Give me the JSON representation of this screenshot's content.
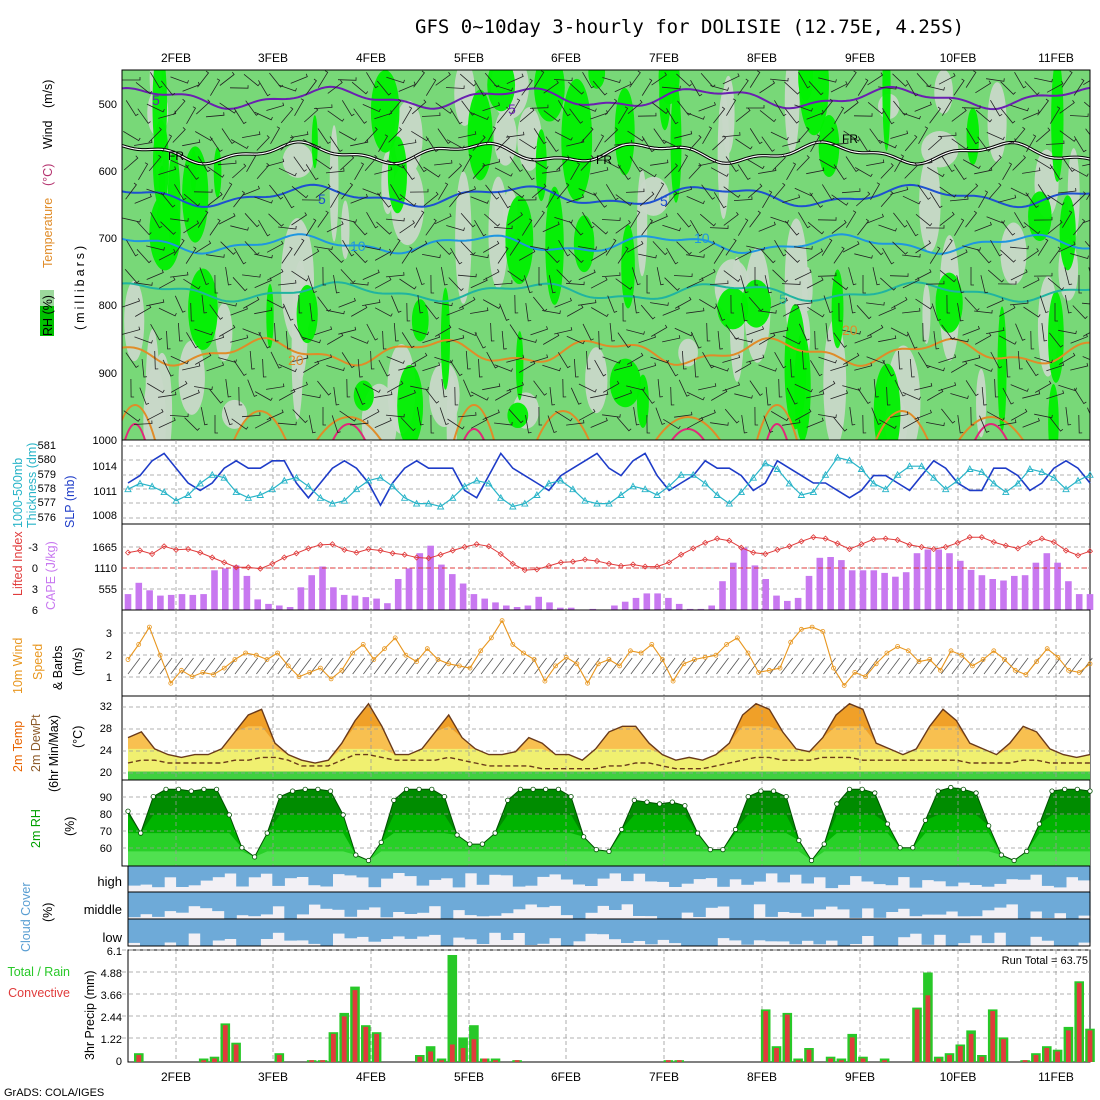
{
  "title": "GFS 0~10day 3-hourly for DOLISIE (12.75E, 4.25S)",
  "footer": "GrADS: COLA/IGES",
  "dates": [
    "2FEB",
    "3FEB",
    "4FEB",
    "5FEB",
    "6FEB",
    "7FEB",
    "8FEB",
    "9FEB",
    "10FEB",
    "11FEB"
  ],
  "colors": {
    "rh_light": "#c8d8c8",
    "rh_mid": "#78d878",
    "rh_bright": "#00f000",
    "rh_dark": "#00a000",
    "slp_line": "#1e3cc8",
    "thickness_line": "#28b4c8",
    "lifted_line": "#e03c3c",
    "cape_bar": "#c878f0",
    "wind_line": "#e8961e",
    "temp_fill": "#f0a028",
    "temp_hot": "#e86400",
    "dew_fill": "#f0f070",
    "rh_green": "#00a000",
    "cloud_blue": "#6eaad8",
    "precip_total": "#28c828",
    "precip_conv": "#e03c3c"
  },
  "panels": {
    "profile": {
      "labels": [
        "RH (%)",
        "Temperature",
        "(°C)",
        "Wind",
        "(m/s)",
        "(millibars)"
      ],
      "yticks": [
        "500",
        "600",
        "700",
        "800",
        "900",
        "1000"
      ],
      "contour_labels": [
        "5",
        "5",
        "FR",
        "FR",
        "FR",
        "5",
        "5",
        "10",
        "10",
        "5",
        "20",
        "20"
      ]
    },
    "thickness": {
      "labels": [
        "1000-500mb",
        "Thickness (dm)",
        "SLP (mb)"
      ],
      "left_ticks": [
        "581",
        "580",
        "579",
        "578",
        "577",
        "576"
      ],
      "right_ticks": [
        "1014",
        "1011",
        "1008"
      ]
    },
    "cape": {
      "labels": [
        "Lifted Index",
        "CAPE (J/kg)"
      ],
      "left_ticks": [
        "-3",
        "0",
        "3",
        "6"
      ],
      "right_ticks": [
        "1665",
        "1110",
        "555"
      ]
    },
    "wind": {
      "labels": [
        "10m Wind",
        "Speed",
        "& Barbs",
        "(m/s)"
      ],
      "ticks": [
        "3",
        "2",
        "1"
      ]
    },
    "temp": {
      "labels": [
        "2m Temp",
        "2m DewPt",
        "(6hr Min/Max)",
        "(°C)"
      ],
      "ticks": [
        "32",
        "28",
        "24",
        "20"
      ]
    },
    "rh": {
      "labels": [
        "2m RH",
        "(%)"
      ],
      "ticks": [
        "90",
        "80",
        "70",
        "60"
      ]
    },
    "cloud": {
      "labels": [
        "Cloud Cover",
        "(%)"
      ],
      "layers": [
        "high",
        "middle",
        "low"
      ]
    },
    "precip": {
      "labels": [
        "Total / Rain",
        "Convective",
        "3hr Precip (mm)"
      ],
      "ticks": [
        "6.1",
        "4.88",
        "3.66",
        "2.44",
        "1.22",
        "0"
      ],
      "run_total": "Run Total = 63.75"
    }
  },
  "chart_data": [
    {
      "type": "line",
      "panel": "thickness-slp",
      "x_unit": "hours from 1FEB 12Z (3-hourly)",
      "series": [
        {
          "name": "SLP (mb)",
          "values": [
            1011,
            1012,
            1014,
            1015,
            1013,
            1011,
            1010,
            1011,
            1013,
            1014,
            1013,
            1013,
            1014,
            1014,
            1011,
            1009,
            1011,
            1013,
            1014,
            1013,
            1011,
            1008,
            1011,
            1013,
            1014,
            1013,
            1013,
            1013,
            1010,
            1009,
            1012,
            1015,
            1013,
            1012,
            1011,
            1010,
            1012,
            1013,
            1014,
            1015,
            1013,
            1012,
            1014,
            1015,
            1012,
            1010,
            1011,
            1012,
            1014,
            1013,
            1013,
            1012,
            1010,
            1011,
            1014,
            1013,
            1012,
            1011,
            1011,
            1010,
            1009,
            1010,
            1012,
            1012,
            1011,
            1010,
            1012,
            1014,
            1013,
            1011,
            1010,
            1010,
            1013,
            1013,
            1012,
            1010,
            1011,
            1013,
            1014,
            1013,
            1011
          ]
        },
        {
          "name": "Thickness (dm)",
          "values": [
            578.0,
            578.4,
            578.2,
            577.8,
            577.2,
            577.6,
            578.4,
            579.0,
            578.8,
            577.8,
            577.4,
            577.6,
            578.0,
            578.6,
            578.8,
            578.2,
            577.4,
            577.0,
            577.2,
            578.0,
            578.6,
            578.8,
            578.2,
            577.4,
            577.0,
            577.0,
            576.8,
            577.4,
            578.2,
            578.6,
            578.4,
            577.4,
            576.8,
            577.0,
            577.6,
            578.4,
            578.6,
            578.0,
            577.2,
            577.0,
            577.0,
            577.6,
            578.2,
            578.0,
            577.6,
            578.2,
            579.0,
            579.0,
            578.4,
            577.6,
            577.0,
            577.8,
            578.8,
            579.8,
            579.4,
            578.4,
            577.6,
            577.8,
            579.0,
            580.2,
            580.0,
            579.4,
            578.4,
            578.0,
            579.0,
            579.6,
            579.6,
            578.8,
            578.0,
            578.6,
            579.4,
            579.2,
            578.4,
            577.8,
            578.4,
            579.4,
            579.2,
            578.8,
            578.0,
            578.6,
            579.0
          ]
        }
      ]
    },
    {
      "type": "bar",
      "panel": "cape",
      "series": [
        {
          "name": "CAPE (J/kg)",
          "values": [
            420,
            720,
            520,
            380,
            400,
            420,
            400,
            420,
            1050,
            1100,
            1180,
            900,
            280,
            160,
            120,
            80,
            600,
            920,
            1150,
            600,
            400,
            380,
            340,
            300,
            180,
            820,
            1100,
            1500,
            1700,
            1200,
            950,
            700,
            420,
            300,
            200,
            120,
            80,
            120,
            350,
            200,
            60,
            60,
            0,
            30,
            0,
            120,
            220,
            320,
            440,
            440,
            320,
            160,
            30,
            30,
            120,
            760,
            1250,
            1650,
            1180,
            820,
            380,
            240,
            320,
            900,
            1380,
            1400,
            1320,
            1050,
            1050,
            1050,
            980,
            880,
            1000,
            1500,
            1600,
            1600,
            1500,
            1300,
            1060,
            920,
            820,
            780,
            900,
            920,
            1250,
            1500,
            1250,
            760,
            420,
            420
          ]
        },
        {
          "name": "Lifted Index",
          "values": [
            -2.2,
            -2.5,
            -2.0,
            -3.1,
            -2.6,
            -2.7,
            -2.2,
            -1.5,
            -0.8,
            -0.1,
            -0.1,
            0.1,
            -0.6,
            -1.5,
            -2.1,
            -2.8,
            -3.3,
            -3.4,
            -2.6,
            -2.2,
            -2.7,
            -2.5,
            -2.1,
            -1.9,
            -1.5,
            -1.4,
            -1.9,
            -2.5,
            -3.0,
            -3.4,
            -3.1,
            -2.0,
            -0.6,
            0.3,
            0.2,
            -0.3,
            -0.8,
            -0.9,
            -1.2,
            -1.0,
            -0.6,
            -0.3,
            -0.5,
            -0.2,
            -0.2,
            -0.8,
            -1.9,
            -2.8,
            -3.6,
            -4.2,
            -3.9,
            -2.9,
            -2.2,
            -2.0,
            -2.6,
            -3.1,
            -3.8,
            -4.4,
            -4.2,
            -3.5,
            -2.7,
            -3.4,
            -4.1,
            -4.2,
            -4.0,
            -3.3,
            -3.0,
            -2.7,
            -3.0,
            -3.6,
            -4.4,
            -4.4,
            -3.7,
            -3.2,
            -2.8,
            -3.6,
            -4.2,
            -3.7,
            -2.5,
            -1.8,
            -2.4
          ]
        }
      ]
    },
    {
      "type": "line",
      "panel": "wind",
      "series": [
        {
          "name": "Speed (m/s)",
          "values": [
            1.6,
            2.3,
            3.1,
            1.8,
            0.5,
            1.1,
            0.8,
            1.0,
            0.9,
            1.2,
            1.6,
            1.9,
            1.8,
            1.6,
            1.9,
            1.3,
            0.8,
            1.0,
            1.2,
            0.7,
            1.1,
            1.9,
            2.3,
            1.6,
            2.1,
            2.6,
            1.8,
            1.5,
            2.1,
            1.6,
            1.4,
            1.3,
            1.2,
            2.0,
            2.6,
            3.4,
            2.3,
            1.9,
            1.6,
            0.6,
            1.3,
            1.7,
            1.4,
            0.5,
            1.4,
            1.6,
            1.3,
            2.0,
            1.9,
            2.3,
            1.6,
            0.6,
            1.4,
            1.6,
            1.7,
            1.8,
            2.3,
            2.6,
            1.9,
            1.0,
            1.1,
            1.2,
            2.4,
            3.0,
            3.1,
            2.9,
            1.2,
            0.4,
            1.0,
            0.8,
            1.4,
            1.9,
            2.2,
            2.0,
            1.5,
            1.6,
            1.1,
            2.0,
            1.8,
            1.3,
            1.6,
            2.0,
            1.6,
            1.1,
            0.9,
            1.5,
            2.1,
            1.7,
            1.1,
            1.0,
            1.4
          ]
        }
      ]
    },
    {
      "type": "area",
      "panel": "temperature",
      "series": [
        {
          "name": "2m Temp (°C)",
          "values": [
            26,
            27,
            24,
            23,
            22.5,
            23,
            23,
            24,
            27,
            30,
            31,
            25,
            23,
            22,
            21.5,
            22,
            25,
            29,
            32,
            28,
            23,
            23,
            24,
            27,
            30,
            26,
            24,
            23,
            23,
            23.5,
            26,
            25,
            23,
            23,
            22,
            24,
            27,
            28,
            28,
            25,
            23,
            22,
            22.5,
            22,
            23,
            25,
            30,
            32,
            31,
            27,
            24,
            23.5,
            26,
            30,
            32,
            31,
            25,
            24,
            23,
            24,
            28,
            31,
            29,
            25,
            24,
            23,
            25,
            28,
            27,
            24,
            23,
            22.5,
            23
          ]
        },
        {
          "name": "2m DewPt (°C)",
          "values": [
            21.5,
            22,
            22,
            21.5,
            21.5,
            21.5,
            21.5,
            21.5,
            22,
            22,
            22.5,
            22.5,
            22,
            21,
            21,
            21,
            22,
            23,
            23,
            22.5,
            22,
            22,
            22,
            22,
            22.5,
            22,
            21.5,
            21,
            21,
            21,
            21,
            20.5,
            20.5,
            20.5,
            20.5,
            20.5,
            21,
            21,
            21.5,
            21.5,
            21,
            20.5,
            20.5,
            20.5,
            21,
            21.5,
            22,
            22.5,
            22.5,
            22,
            22,
            22,
            22.5,
            22.5,
            22.5,
            22,
            22,
            22,
            22,
            22,
            22,
            22,
            22,
            21.5,
            21.5,
            21.5,
            21.5,
            22,
            22,
            21.5,
            21.5,
            21.5,
            21.5
          ]
        }
      ]
    },
    {
      "type": "area",
      "panel": "rh",
      "series": [
        {
          "name": "2m RH (%)",
          "values": [
            82,
            70,
            90,
            94,
            94,
            93,
            94,
            94,
            80,
            62,
            57,
            70,
            90,
            93,
            94,
            94,
            93,
            80,
            58,
            55,
            65,
            88,
            94,
            94,
            94,
            90,
            69,
            64,
            64,
            70,
            88,
            94,
            94,
            94,
            94,
            90,
            68,
            61,
            60,
            72,
            88,
            87,
            86,
            87,
            85,
            70,
            61,
            61,
            72,
            90,
            93,
            93,
            90,
            66,
            55,
            64,
            86,
            94,
            94,
            92,
            75,
            62,
            62,
            77,
            93,
            95,
            94,
            92,
            74,
            58,
            55,
            60,
            75,
            93,
            94,
            94,
            93
          ]
        }
      ]
    },
    {
      "type": "bar",
      "panel": "precip",
      "ylim": [
        0,
        6.1
      ],
      "series": [
        {
          "name": "Total / Rain (mm)",
          "values": [
            0,
            0.5,
            0,
            0,
            0,
            0,
            0,
            0.2,
            0.3,
            2.2,
            1.1,
            0,
            0,
            0,
            0.5,
            0,
            0,
            0.1,
            0.1,
            1.7,
            2.8,
            4.3,
            2.1,
            1.7,
            0,
            0,
            0,
            0.4,
            0.9,
            0.2,
            6.1,
            1.4,
            2.1,
            0.2,
            0.2,
            0,
            0.1,
            0,
            0,
            0,
            0,
            0,
            0,
            0,
            0,
            0,
            0,
            0,
            0,
            0,
            0.1,
            0.1,
            0,
            0,
            0,
            0,
            0,
            0,
            0,
            3.0,
            0.9,
            2.8,
            0.2,
            0.8,
            0,
            0.3,
            0.2,
            1.6,
            0.3,
            0,
            0.2,
            0,
            0,
            3.1,
            5.1,
            0.3,
            0.5,
            1.0,
            1.8,
            0.4,
            3.0,
            1.4,
            0,
            0.1,
            0.5,
            0.9,
            0.7,
            2.0,
            4.6,
            1.9
          ]
        },
        {
          "name": "Convective (mm)",
          "values": [
            0,
            0.4,
            0,
            0,
            0,
            0,
            0,
            0.1,
            0.2,
            2.1,
            1.0,
            0,
            0,
            0,
            0.4,
            0,
            0,
            0.1,
            0.1,
            1.6,
            2.6,
            4.1,
            2.0,
            1.6,
            0,
            0,
            0,
            0.3,
            0.6,
            0.1,
            1.0,
            0.8,
            1.3,
            0.2,
            0.1,
            0,
            0.1,
            0,
            0,
            0,
            0,
            0,
            0,
            0,
            0,
            0,
            0,
            0,
            0,
            0,
            0.1,
            0.1,
            0,
            0,
            0,
            0,
            0,
            0,
            0,
            2.9,
            0.8,
            2.7,
            0.1,
            0.7,
            0,
            0.2,
            0.1,
            1.4,
            0.2,
            0,
            0.1,
            0,
            0,
            3.0,
            3.8,
            0.2,
            0.4,
            0.9,
            1.6,
            0.3,
            2.9,
            1.3,
            0,
            0.1,
            0.4,
            0.8,
            0.6,
            1.8,
            4.5,
            1.8
          ]
        }
      ]
    }
  ]
}
